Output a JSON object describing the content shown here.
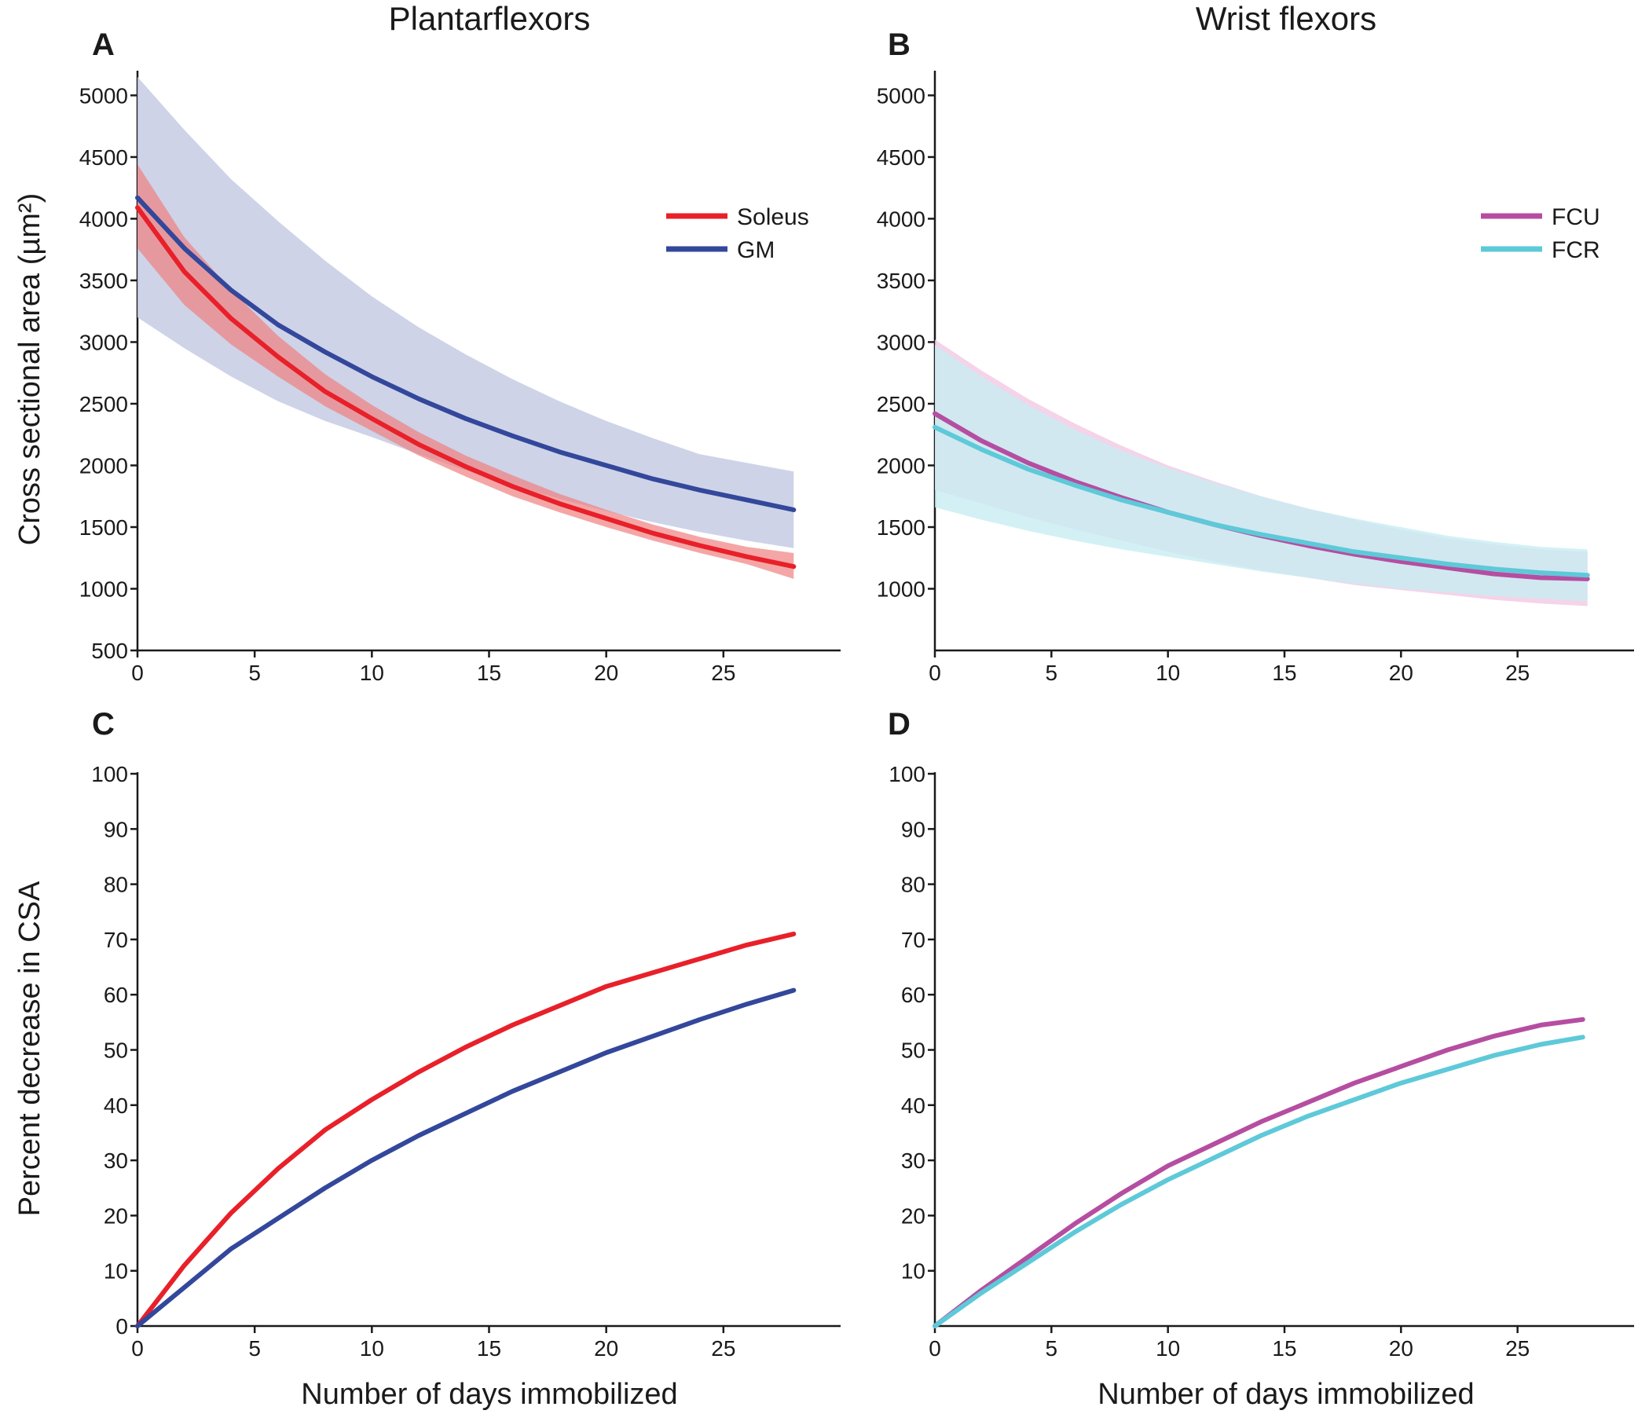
{
  "column_titles": [
    "Plantarflexors",
    "Wrist flexors"
  ],
  "y_label_top": "Cross sectional area (µm²)",
  "y_label_bottom": "Percent decrease in CSA",
  "x_label": "Number of days immobilized",
  "chart_data": [
    {
      "panel": "A",
      "type": "line",
      "xlim": [
        0,
        30
      ],
      "ylim": [
        500,
        5200
      ],
      "xticks": [
        0,
        5,
        10,
        15,
        20,
        25
      ],
      "yticks": [
        500,
        1000,
        1500,
        2000,
        2500,
        3000,
        3500,
        4000,
        4500,
        5000
      ],
      "legend": "top-right",
      "x": [
        0,
        2,
        4,
        6,
        8,
        10,
        12,
        14,
        16,
        18,
        20,
        22,
        24,
        26,
        28
      ],
      "series": [
        {
          "name": "Soleus",
          "color": "#e8202a",
          "band_color": "#f08080",
          "band_opacity": 0.7,
          "values": [
            4090,
            3570,
            3190,
            2880,
            2600,
            2380,
            2170,
            1990,
            1830,
            1690,
            1570,
            1450,
            1350,
            1260,
            1180
          ],
          "lower": [
            3760,
            3300,
            2980,
            2720,
            2480,
            2280,
            2080,
            1910,
            1750,
            1620,
            1500,
            1390,
            1290,
            1200,
            1080
          ],
          "upper": [
            4440,
            3850,
            3420,
            3050,
            2740,
            2490,
            2270,
            2080,
            1920,
            1770,
            1640,
            1520,
            1420,
            1340,
            1290
          ]
        },
        {
          "name": "GM",
          "color": "#33479b",
          "band_color": "#c9cee5",
          "band_opacity": 0.9,
          "values": [
            4170,
            3760,
            3420,
            3140,
            2920,
            2720,
            2540,
            2380,
            2240,
            2110,
            2000,
            1890,
            1800,
            1720,
            1640
          ],
          "lower": [
            3200,
            2950,
            2720,
            2520,
            2360,
            2230,
            2090,
            1960,
            1840,
            1730,
            1630,
            1540,
            1460,
            1390,
            1330
          ],
          "upper": [
            5150,
            4720,
            4320,
            3980,
            3660,
            3370,
            3120,
            2900,
            2700,
            2520,
            2360,
            2220,
            2090,
            2020,
            1950
          ]
        }
      ]
    },
    {
      "panel": "B",
      "type": "line",
      "xlim": [
        0,
        30
      ],
      "ylim": [
        500,
        5200
      ],
      "xticks": [
        0,
        5,
        10,
        15,
        20,
        25
      ],
      "yticks": [
        1000,
        1500,
        2000,
        2500,
        3000,
        3500,
        4000,
        4500,
        5000
      ],
      "legend": "top-right",
      "x": [
        0,
        2,
        4,
        6,
        8,
        10,
        12,
        14,
        16,
        18,
        20,
        22,
        24,
        26,
        28
      ],
      "series": [
        {
          "name": "FCU",
          "color": "#b54ea1",
          "band_color": "#f2c8e2",
          "band_opacity": 0.8,
          "values": [
            2420,
            2200,
            2020,
            1870,
            1740,
            1620,
            1520,
            1430,
            1350,
            1280,
            1220,
            1170,
            1120,
            1090,
            1080
          ],
          "lower": [
            1800,
            1690,
            1580,
            1480,
            1390,
            1300,
            1220,
            1150,
            1090,
            1030,
            990,
            950,
            910,
            880,
            860
          ],
          "upper": [
            3020,
            2770,
            2540,
            2340,
            2160,
            2000,
            1870,
            1750,
            1650,
            1560,
            1480,
            1410,
            1360,
            1320,
            1300
          ]
        },
        {
          "name": "FCR",
          "color": "#5ec9d8",
          "band_color": "#c8eef3",
          "band_opacity": 0.8,
          "values": [
            2310,
            2130,
            1970,
            1840,
            1720,
            1620,
            1520,
            1440,
            1370,
            1300,
            1250,
            1200,
            1160,
            1130,
            1110
          ],
          "lower": [
            1660,
            1560,
            1470,
            1390,
            1320,
            1260,
            1200,
            1140,
            1090,
            1040,
            1000,
            970,
            940,
            920,
            900
          ],
          "upper": [
            2980,
            2720,
            2490,
            2290,
            2120,
            1980,
            1860,
            1750,
            1650,
            1570,
            1500,
            1430,
            1380,
            1340,
            1320
          ]
        }
      ]
    },
    {
      "panel": "C",
      "type": "line",
      "xlim": [
        0,
        30
      ],
      "ylim": [
        0,
        100
      ],
      "xticks": [
        0,
        5,
        10,
        15,
        20,
        25
      ],
      "yticks": [
        0,
        10,
        20,
        30,
        40,
        50,
        60,
        70,
        80,
        90,
        100
      ],
      "x": [
        0,
        2,
        4,
        6,
        8,
        10,
        12,
        14,
        16,
        18,
        20,
        22,
        24,
        26,
        28
      ],
      "series": [
        {
          "color": "#e8202a",
          "values": [
            0,
            11,
            20.5,
            28.5,
            35.5,
            41,
            46,
            50.5,
            54.5,
            58,
            61.5,
            64,
            66.5,
            69,
            71
          ]
        },
        {
          "color": "#33479b",
          "values": [
            0,
            7,
            14,
            19.5,
            25,
            30,
            34.5,
            38.5,
            42.5,
            46,
            49.5,
            52.5,
            55.5,
            58.3,
            60.8
          ]
        }
      ]
    },
    {
      "panel": "D",
      "type": "line",
      "xlim": [
        0,
        30
      ],
      "ylim": [
        0,
        100
      ],
      "xticks": [
        0,
        5,
        10,
        15,
        20,
        25
      ],
      "yticks": [
        10,
        20,
        30,
        40,
        50,
        60,
        70,
        80,
        90,
        100
      ],
      "x": [
        0,
        2,
        4,
        6,
        8,
        10,
        12,
        14,
        16,
        18,
        20,
        22,
        24,
        26,
        27.8
      ],
      "series": [
        {
          "color": "#b54ea1",
          "values": [
            0,
            6.5,
            12.5,
            18.5,
            24,
            29,
            33,
            37,
            40.5,
            44,
            47,
            50,
            52.5,
            54.5,
            55.5
          ]
        },
        {
          "color": "#5ec9d8",
          "values": [
            0,
            6,
            11.5,
            17,
            22,
            26.5,
            30.5,
            34.5,
            38,
            41,
            44,
            46.5,
            49,
            51,
            52.3
          ]
        }
      ]
    }
  ]
}
